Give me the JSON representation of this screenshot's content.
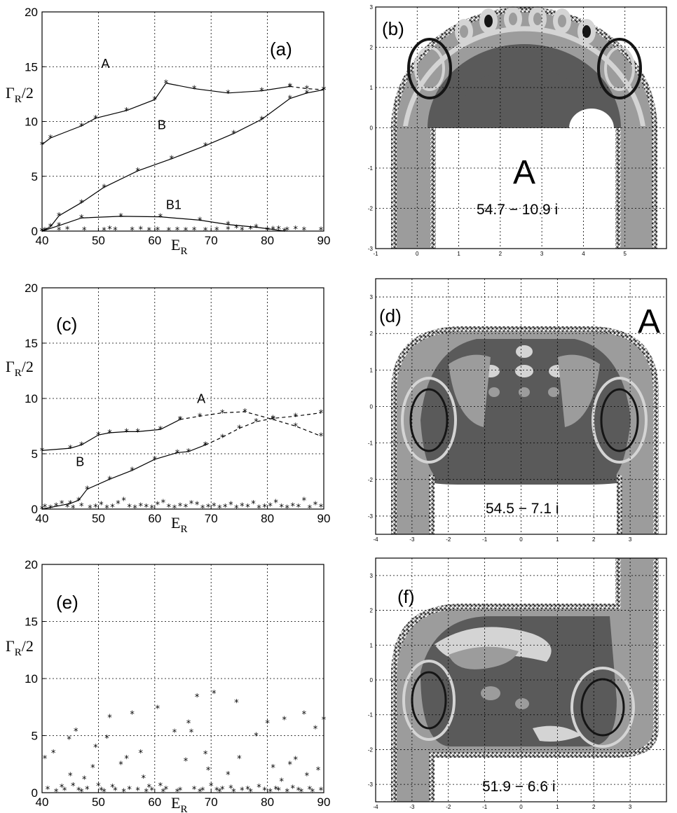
{
  "chart_data": [
    {
      "panel": "(a)",
      "type": "line",
      "xlabel_main": "E",
      "xlabel_sub": "R",
      "ylabel_main": "Γ",
      "ylabel_sub": "R",
      "ylabel_tail": "/2",
      "xlim": [
        40,
        90
      ],
      "ylim": [
        0,
        20
      ],
      "xticks": [
        "40",
        "50",
        "60",
        "70",
        "80",
        "90"
      ],
      "yticks": [
        "0",
        "5",
        "10",
        "15",
        "20"
      ],
      "grid": true,
      "series": [
        {
          "name": "A",
          "label_at": [
            50.5,
            14.9
          ],
          "solid": [
            [
              40,
              7.9
            ],
            [
              41.5,
              8.5
            ],
            [
              47,
              9.6
            ],
            [
              49.5,
              10.3
            ],
            [
              55,
              11.0
            ],
            [
              60,
              12.0
            ],
            [
              62,
              13.5
            ],
            [
              67,
              13.0
            ],
            [
              73,
              12.6
            ],
            [
              79,
              12.8
            ],
            [
              84,
              13.2
            ]
          ],
          "dashed": [
            [
              84,
              13.2
            ],
            [
              87,
              13.0
            ],
            [
              90,
              12.9
            ]
          ]
        },
        {
          "name": "B",
          "label_at": [
            60.5,
            9.3
          ],
          "solid": [
            [
              40,
              0.0
            ],
            [
              41.5,
              0.4
            ],
            [
              43,
              1.4
            ],
            [
              47,
              2.6
            ],
            [
              51,
              4.0
            ],
            [
              57,
              5.5
            ],
            [
              63,
              6.6
            ],
            [
              69,
              7.8
            ],
            [
              74,
              8.9
            ],
            [
              79,
              10.2
            ],
            [
              84,
              12.1
            ],
            [
              87,
              12.6
            ],
            [
              90,
              12.9
            ]
          ],
          "dashed": []
        },
        {
          "name": "B1",
          "label_at": [
            62,
            2.0
          ],
          "solid": [
            [
              40,
              0.0
            ],
            [
              43,
              0.5
            ],
            [
              47,
              1.2
            ],
            [
              54,
              1.35
            ],
            [
              61,
              1.3
            ],
            [
              68,
              1.0
            ],
            [
              73,
              0.6
            ],
            [
              78,
              0.35
            ],
            [
              81,
              0.15
            ],
            [
              83,
              0.0
            ]
          ],
          "dashed": []
        }
      ],
      "scatter": [
        [
          40.5,
          0.05
        ],
        [
          43,
          0.1
        ],
        [
          44.5,
          0.15
        ],
        [
          47.5,
          0.1
        ],
        [
          51,
          0.05
        ],
        [
          52,
          0.2
        ],
        [
          53,
          0.1
        ],
        [
          56,
          0.1
        ],
        [
          57.5,
          0.15
        ],
        [
          59,
          0.05
        ],
        [
          60.5,
          0.1
        ],
        [
          62.5,
          0.05
        ],
        [
          64,
          0.1
        ],
        [
          65.5,
          0.05
        ],
        [
          67,
          0.1
        ],
        [
          69,
          0.05
        ],
        [
          71,
          0.1
        ],
        [
          73,
          0.15
        ],
        [
          74.5,
          0.3
        ],
        [
          75.5,
          0.1
        ],
        [
          77,
          0.2
        ],
        [
          80,
          0.1
        ],
        [
          82,
          0.2
        ],
        [
          83.5,
          0.1
        ],
        [
          85,
          0.2
        ],
        [
          86.5,
          0.1
        ],
        [
          89.5,
          0.1
        ]
      ]
    },
    {
      "panel": "(c)",
      "type": "line",
      "xlabel_main": "E",
      "xlabel_sub": "R",
      "ylabel_main": "Γ",
      "ylabel_sub": "R",
      "ylabel_tail": "/2",
      "xlim": [
        40,
        90
      ],
      "ylim": [
        0,
        20
      ],
      "xticks": [
        "40",
        "50",
        "60",
        "70",
        "80",
        "90"
      ],
      "yticks": [
        "0",
        "5",
        "10",
        "15",
        "20"
      ],
      "grid": true,
      "series": [
        {
          "name": "A",
          "label_at": [
            67.5,
            9.6
          ],
          "solid": [
            [
              40,
              5.3
            ],
            [
              45,
              5.5
            ],
            [
              47,
              5.8
            ],
            [
              50,
              6.7
            ],
            [
              52,
              6.9
            ],
            [
              55,
              7.0
            ],
            [
              57,
              7.0
            ],
            [
              61,
              7.2
            ],
            [
              64.5,
              8.1
            ]
          ],
          "dashed": [
            [
              64.5,
              8.1
            ],
            [
              68,
              8.4
            ],
            [
              72,
              8.7
            ],
            [
              76,
              8.8
            ],
            [
              81,
              8.1
            ],
            [
              85,
              7.5
            ],
            [
              89.5,
              6.6
            ]
          ]
        },
        {
          "name": "B",
          "label_at": [
            46,
            3.9
          ],
          "solid": [
            [
              40,
              0.0
            ],
            [
              45,
              0.5
            ],
            [
              46.5,
              0.8
            ],
            [
              48,
              1.8
            ],
            [
              52,
              2.7
            ],
            [
              56,
              3.5
            ],
            [
              60,
              4.5
            ],
            [
              64,
              5.1
            ],
            [
              66,
              5.2
            ],
            [
              69,
              5.8
            ]
          ],
          "dashed": [
            [
              69,
              5.8
            ],
            [
              72,
              6.5
            ],
            [
              75,
              7.3
            ],
            [
              78,
              7.9
            ],
            [
              81,
              8.2
            ],
            [
              85,
              8.4
            ],
            [
              89.5,
              8.7
            ]
          ]
        }
      ],
      "scatter": [
        [
          40.5,
          0.2
        ],
        [
          41.5,
          0.1
        ],
        [
          42.5,
          0.3
        ],
        [
          43.5,
          0.5
        ],
        [
          44.5,
          0.2
        ],
        [
          45.5,
          0.1
        ],
        [
          47,
          0.3
        ],
        [
          48.5,
          0.1
        ],
        [
          49.5,
          0.2
        ],
        [
          50.5,
          0.4
        ],
        [
          51.5,
          0.1
        ],
        [
          52.5,
          0.2
        ],
        [
          53.5,
          0.5
        ],
        [
          54.5,
          0.8
        ],
        [
          55.5,
          0.2
        ],
        [
          56.5,
          0.1
        ],
        [
          57.5,
          0.3
        ],
        [
          58.5,
          0.2
        ],
        [
          59.5,
          0.1
        ],
        [
          60.5,
          0.4
        ],
        [
          61.5,
          0.6
        ],
        [
          62.5,
          0.2
        ],
        [
          63.5,
          0.1
        ],
        [
          64.5,
          0.3
        ],
        [
          65.5,
          0.2
        ],
        [
          66.5,
          0.5
        ],
        [
          67.5,
          0.4
        ],
        [
          68.5,
          0.1
        ],
        [
          69.5,
          0.2
        ],
        [
          70.5,
          0.3
        ],
        [
          71.5,
          0.1
        ],
        [
          72.5,
          0.2
        ],
        [
          73.5,
          0.4
        ],
        [
          74.5,
          0.1
        ],
        [
          75.5,
          0.3
        ],
        [
          76.5,
          0.2
        ],
        [
          77.5,
          0.5
        ],
        [
          78.5,
          0.1
        ],
        [
          79.5,
          0.2
        ],
        [
          80.5,
          0.3
        ],
        [
          81.5,
          0.6
        ],
        [
          82.5,
          0.2
        ],
        [
          83.5,
          0.1
        ],
        [
          84.5,
          0.3
        ],
        [
          85.5,
          0.2
        ],
        [
          86.5,
          0.8
        ],
        [
          87.5,
          0.1
        ],
        [
          88.5,
          0.4
        ],
        [
          89.5,
          0.2
        ]
      ]
    },
    {
      "panel": "(e)",
      "type": "scatter",
      "xlabel_main": "E",
      "xlabel_sub": "R",
      "ylabel_main": "Γ",
      "ylabel_sub": "R",
      "ylabel_tail": "/2",
      "xlim": [
        40,
        90
      ],
      "ylim": [
        0,
        20
      ],
      "xticks": [
        "40",
        "50",
        "60",
        "70",
        "80",
        "90"
      ],
      "yticks": [
        "0",
        "5",
        "10",
        "15",
        "20"
      ],
      "grid": true,
      "series": [],
      "scatter": [
        [
          40.5,
          3.0
        ],
        [
          41,
          0.3
        ],
        [
          42,
          3.5
        ],
        [
          42.5,
          0.1
        ],
        [
          43.5,
          0.5
        ],
        [
          44,
          0.2
        ],
        [
          44.8,
          4.7
        ],
        [
          45,
          1.5
        ],
        [
          45.5,
          0.6
        ],
        [
          46,
          5.4
        ],
        [
          46.5,
          0.2
        ],
        [
          47,
          0.1
        ],
        [
          47.5,
          1.2
        ],
        [
          48,
          0.3
        ],
        [
          49,
          2.2
        ],
        [
          49.5,
          4.0
        ],
        [
          50,
          0.6
        ],
        [
          50.5,
          0.2
        ],
        [
          51,
          0.1
        ],
        [
          51.5,
          4.8
        ],
        [
          52,
          6.6
        ],
        [
          52.5,
          0.5
        ],
        [
          53,
          0.2
        ],
        [
          54,
          2.5
        ],
        [
          54.5,
          0.1
        ],
        [
          55,
          3.0
        ],
        [
          55.5,
          0.3
        ],
        [
          56,
          6.9
        ],
        [
          57,
          0.2
        ],
        [
          57.5,
          3.5
        ],
        [
          58,
          1.3
        ],
        [
          58.5,
          0.1
        ],
        [
          59,
          0.5
        ],
        [
          59.5,
          0.2
        ],
        [
          60.5,
          7.4
        ],
        [
          61,
          0.6
        ],
        [
          61.5,
          0.1
        ],
        [
          62,
          0.3
        ],
        [
          63.5,
          5.3
        ],
        [
          64,
          0.1
        ],
        [
          64.5,
          0.2
        ],
        [
          65.5,
          2.8
        ],
        [
          66,
          6.1
        ],
        [
          66.5,
          5.3
        ],
        [
          67,
          0.3
        ],
        [
          67.5,
          8.4
        ],
        [
          68,
          0.1
        ],
        [
          68.5,
          0.2
        ],
        [
          69,
          3.4
        ],
        [
          69.5,
          2.0
        ],
        [
          70,
          0.6
        ],
        [
          70.5,
          8.7
        ],
        [
          71,
          0.2
        ],
        [
          71.5,
          0.1
        ],
        [
          72,
          0.3
        ],
        [
          73,
          1.6
        ],
        [
          73.5,
          0.4
        ],
        [
          74,
          0.1
        ],
        [
          74.5,
          7.9
        ],
        [
          75,
          3.0
        ],
        [
          75.5,
          0.2
        ],
        [
          76.5,
          0.3
        ],
        [
          77,
          0.1
        ],
        [
          78,
          5.0
        ],
        [
          78.5,
          0.5
        ],
        [
          79.5,
          0.2
        ],
        [
          80,
          6.1
        ],
        [
          80.5,
          0.1
        ],
        [
          81,
          2.2
        ],
        [
          81.5,
          0.3
        ],
        [
          82,
          0.2
        ],
        [
          82.5,
          1.0
        ],
        [
          83,
          6.4
        ],
        [
          83.5,
          0.1
        ],
        [
          84,
          2.5
        ],
        [
          84.5,
          0.4
        ],
        [
          85,
          2.9
        ],
        [
          85.5,
          0.2
        ],
        [
          86,
          0.1
        ],
        [
          86.5,
          6.9
        ],
        [
          87,
          1.5
        ],
        [
          87.5,
          0.3
        ],
        [
          88,
          0.1
        ],
        [
          88.5,
          5.6
        ],
        [
          89,
          2.0
        ],
        [
          89.5,
          0.2
        ],
        [
          90,
          6.4
        ]
      ]
    }
  ],
  "maps": [
    {
      "panel": "(b)",
      "xlim": [
        -1,
        6
      ],
      "ylim": [
        -3,
        3
      ],
      "xticks": [
        "-1",
        "0",
        "1",
        "2",
        "3",
        "4",
        "5"
      ],
      "yticks": [
        "-3",
        "-2",
        "-1",
        "0",
        "1",
        "2",
        "3"
      ],
      "big_label": "A",
      "eigenvalue": "54.7 − 10.9 i"
    },
    {
      "panel": "(d)",
      "xlim": [
        -4,
        4
      ],
      "ylim": [
        -3.5,
        3.5
      ],
      "xticks": [
        "-4",
        "-3",
        "-2",
        "-1",
        "0",
        "1",
        "2",
        "3"
      ],
      "yticks": [
        "-3",
        "-2",
        "-1",
        "0",
        "1",
        "2",
        "3"
      ],
      "big_label": "A",
      "eigenvalue": "54.5 − 7.1 i"
    },
    {
      "panel": "(f)",
      "xlim": [
        -4,
        4
      ],
      "ylim": [
        -3.5,
        3.5
      ],
      "xticks": [
        "-4",
        "-3",
        "-2",
        "-1",
        "0",
        "1",
        "2",
        "3"
      ],
      "yticks": [
        "-3",
        "-2",
        "-1",
        "0",
        "1",
        "2",
        "3"
      ],
      "big_label": "",
      "eigenvalue": "51.9 − 6.6 i"
    }
  ],
  "colors": {
    "dark": "#5a5a5a",
    "mid": "#9c9c9c",
    "light": "#d4d4d4",
    "black": "#151515",
    "white": "#ffffff"
  }
}
